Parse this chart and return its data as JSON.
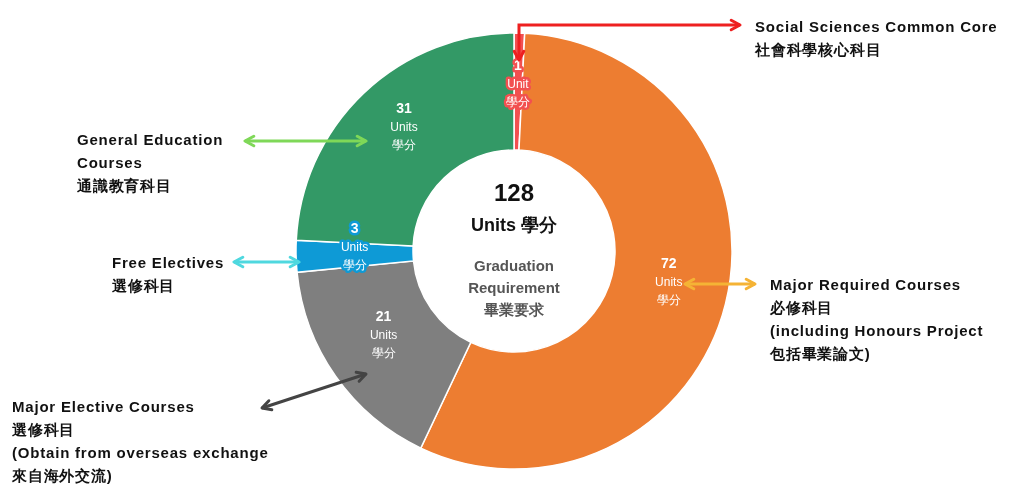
{
  "chart_data": {
    "type": "donut",
    "title": "128\nUnits 學分",
    "subtitle": "Graduation\nRequirement\n畢業要求",
    "categories": [
      "Social Sciences Common Core\n社會科學核心科目",
      "Major Required Courses\n必修科目\n(including Honours Project\n包括畢業論文)",
      "Major Elective Courses\n選修科目\n(Obtain from overseas exchange\n來自海外交流)",
      "Free Electives\n選修科目",
      "General Education\nCourses\n通識教育科目"
    ],
    "values": [
      1,
      72,
      21,
      3,
      31
    ],
    "colors": [
      "#f25050",
      "#ed7d31",
      "#7f7f7f",
      "#0e9ad6",
      "#339966"
    ],
    "value_labels": [
      "1\nUnit\n學分",
      "72\nUnits\n學分",
      "21\nUnits\n學分",
      "3\nUnits\n學分",
      "31\nUnits\n學分"
    ]
  }
}
